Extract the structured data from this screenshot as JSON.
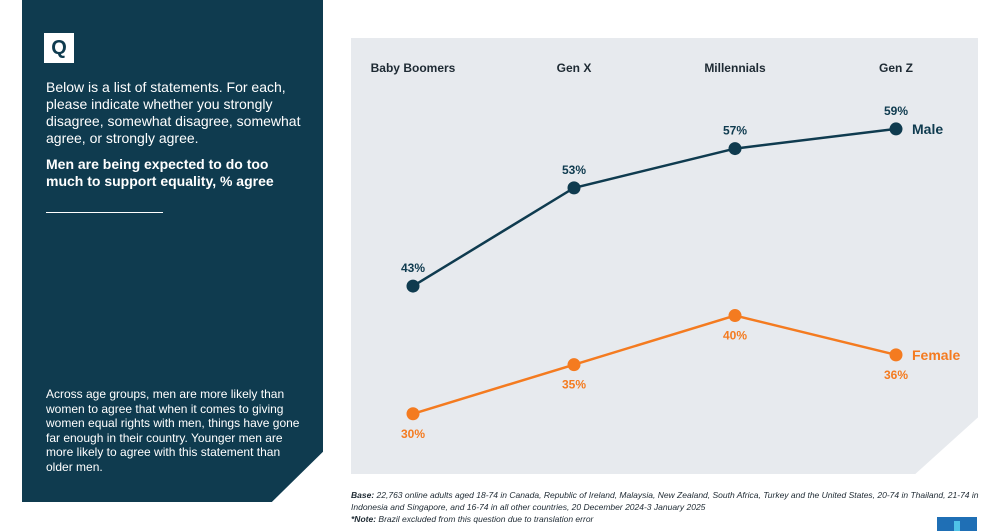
{
  "panel": {
    "badge": "Q",
    "intro": "Below is a list of statements. For each, please indicate whether you strongly disagree, somewhat disagree, somewhat agree, or strongly agree.",
    "question": "Men are being expected to do too much to support equality, % agree",
    "summary": "Across age groups, men are more likely than women to agree that when it comes to giving women equal rights with men, things have gone far enough in their country. Younger men are more likely to agree with this statement than older men."
  },
  "chart_data": {
    "type": "line",
    "title": "Men are being expected to do too much to support equality, % agree",
    "categories": [
      "Baby Boomers",
      "Gen X",
      "Millennials",
      "Gen Z"
    ],
    "series": [
      {
        "name": "Male",
        "values": [
          43,
          53,
          57,
          59
        ],
        "color": "#0f3b4f",
        "labels": [
          "43%",
          "53%",
          "57%",
          "59%"
        ]
      },
      {
        "name": "Female",
        "values": [
          30,
          35,
          40,
          36
        ],
        "color": "#f47b20",
        "labels": [
          "30%",
          "35%",
          "40%",
          "36%"
        ]
      }
    ],
    "ylim": [
      20,
      65
    ],
    "xlabel": "",
    "ylabel": "",
    "legend": "inline-right",
    "grid": false
  },
  "footnote": {
    "base_label": "Base:",
    "base_text": "22,763 online adults aged 18-74 in Canada, Republic of Ireland, Malaysia, New Zealand, South Africa, Turkey and the United States, 20-74 in Thailand, 21-74 in Indonesia and Singapore, and 16-74 in all other countries, 20 December 2024-3 January 2025",
    "note_label": "*Note:",
    "note_text": "Brazil excluded from this question due to translation error"
  },
  "colors": {
    "panel": "#0f3b4f",
    "male": "#0f3b4f",
    "female": "#f47b20",
    "chart_bg": "#e7eaee"
  }
}
